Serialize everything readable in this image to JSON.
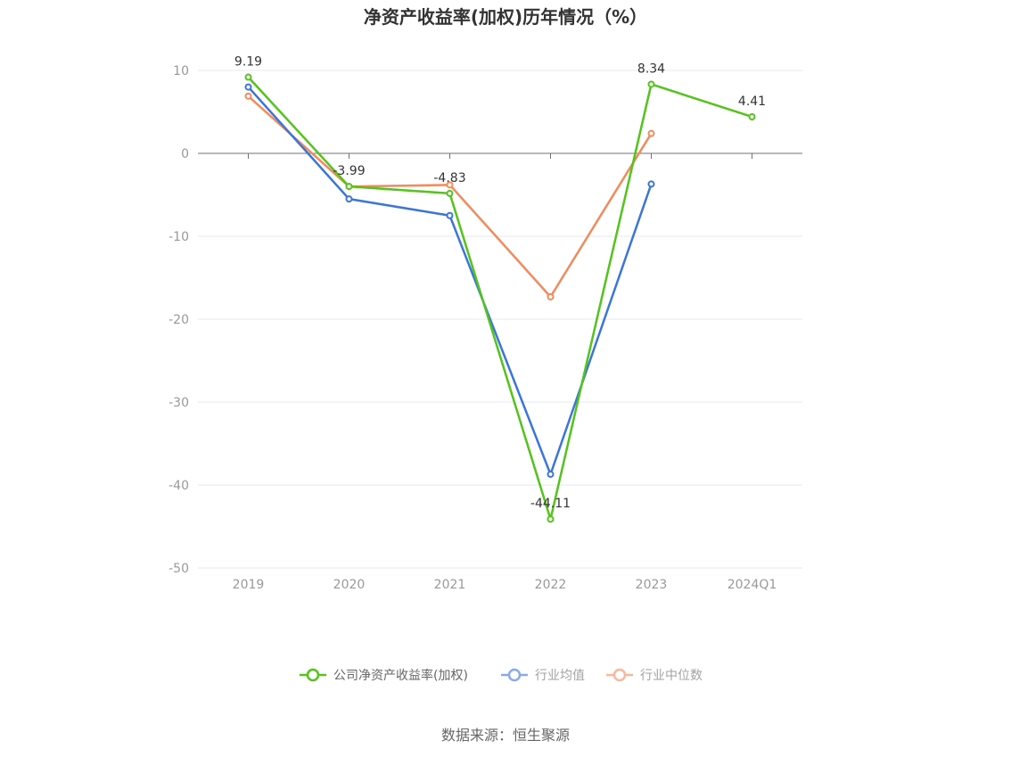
{
  "chart_data": {
    "type": "line",
    "title": "净资产收益率(加权)历年情况（%）",
    "categories": [
      "2019",
      "2020",
      "2021",
      "2022",
      "2023",
      "2024Q1"
    ],
    "ylim": [
      -50,
      10
    ],
    "yticks": [
      "10",
      "0",
      "-10",
      "-20",
      "-30",
      "-40",
      "-50"
    ],
    "grid": true,
    "legend_position": "bottom",
    "series": [
      {
        "name": "公司净资产收益率(加权)",
        "color": "#52c41a",
        "values": [
          9.19,
          -3.99,
          -4.83,
          -44.11,
          8.34,
          4.41
        ],
        "labels": [
          "9.19",
          "-3.99",
          "-4.83",
          "-44.11",
          "8.34",
          "4.41"
        ]
      },
      {
        "name": "行业均值",
        "color": "#3a75d9",
        "values": [
          8.0,
          -5.5,
          -7.5,
          -38.7,
          -3.7,
          null
        ]
      },
      {
        "name": "行业中位数",
        "color": "#f28a5c",
        "values": [
          6.9,
          -4.0,
          -3.8,
          -17.3,
          2.4,
          null
        ]
      }
    ]
  },
  "source": "数据来源：恒生聚源"
}
